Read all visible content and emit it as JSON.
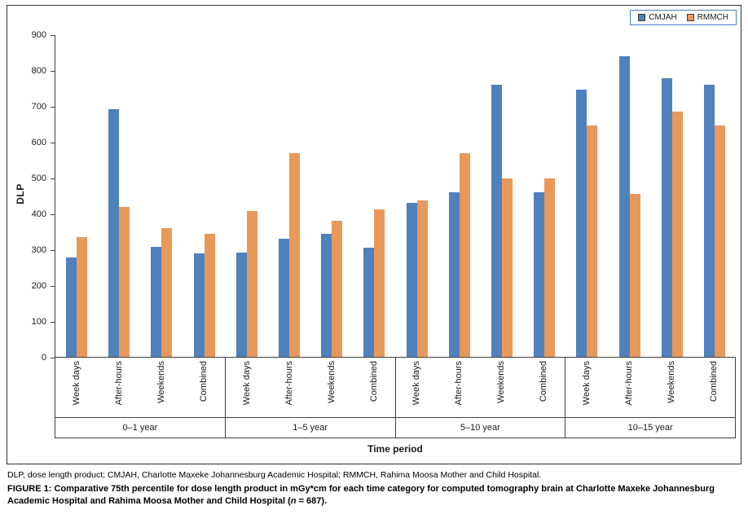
{
  "chart_data": {
    "type": "bar",
    "title": "",
    "xlabel": "Time period",
    "ylabel": "DLP",
    "ylim": [
      0,
      900
    ],
    "ytick_step": 100,
    "grid": false,
    "legend_position": "top-right",
    "groups": [
      "0–1 year",
      "1–5 year",
      "5–10 year",
      "10–15 year"
    ],
    "categories": [
      "Week days",
      "After-hours",
      "Weekends",
      "Combined"
    ],
    "series": [
      {
        "name": "CMJAH",
        "color": "#4F81BD",
        "values": [
          [
            278,
            693,
            308,
            290
          ],
          [
            292,
            330,
            343,
            305
          ],
          [
            430,
            460,
            760,
            460
          ],
          [
            748,
            840,
            780,
            762
          ]
        ]
      },
      {
        "name": "RMMCH",
        "color": "#E8995A",
        "values": [
          [
            335,
            420,
            360,
            345
          ],
          [
            407,
            570,
            380,
            413
          ],
          [
            438,
            570,
            500,
            500
          ],
          [
            648,
            455,
            685,
            648
          ]
        ]
      }
    ]
  },
  "footnotes": {
    "abbrev": "DLP, dose length product; CMJAH, Charlotte Maxeke Johannesburg Academic Hospital; RMMCH, Rahima Moosa Mother and Child Hospital.",
    "caption_label": "FIGURE 1:",
    "caption_pre": " Comparative 75th percentile for dose length product in mGy*cm for each time category for computed tomography brain at Charlotte Maxeke Johannesburg Academic Hospital and Rahima Moosa Mother and Child Hospital (",
    "caption_n": "n",
    "caption_post": " = 687)."
  }
}
